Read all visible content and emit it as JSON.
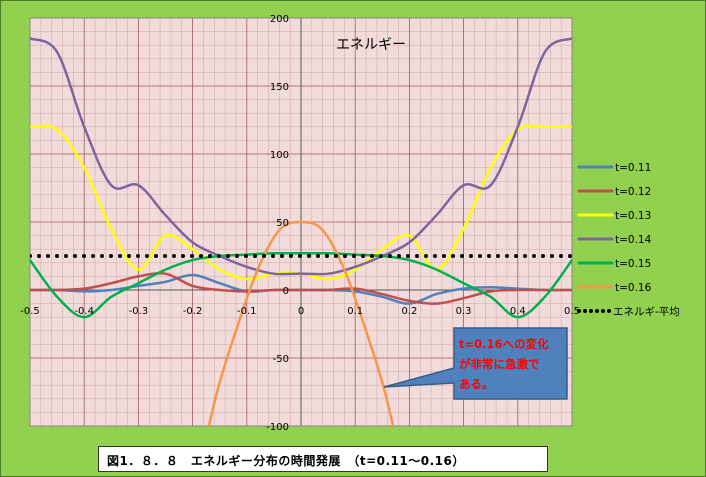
{
  "caption": "図1．８．８　エネルギー分布の時間発展　（t=0.11～0.16）",
  "colors": {
    "background": "#92d050",
    "plot_area": "#f2dcdb",
    "grid": "#c08080",
    "callout_fill": "#4f81bd",
    "callout_text": "#ff0000"
  },
  "callout": {
    "line1": "t=0.16への変化",
    "line2": "が非常に急激で",
    "line3": "ある。"
  },
  "chart_data": {
    "type": "line",
    "title": "エネルギー",
    "xlim": [
      -0.5,
      0.5
    ],
    "ylim": [
      -100,
      200
    ],
    "x_ticks": [
      -0.5,
      -0.4,
      -0.3,
      -0.2,
      -0.1,
      0,
      0.1,
      0.2,
      0.3,
      0.4,
      0.5
    ],
    "x_tick_labels": [
      "-0.5",
      "-0.4",
      "-0.3",
      "-0.2",
      "-0.1",
      "0",
      "0.1",
      "0.2",
      "0.3",
      "0.4",
      "0.5"
    ],
    "y_ticks": [
      -100,
      -50,
      0,
      50,
      100,
      150,
      200
    ],
    "y_tick_labels": [
      "-100",
      "-50",
      "0",
      "50",
      "100",
      "150",
      "200"
    ],
    "grid": true,
    "legend_position": "right",
    "x": [
      -0.5,
      -0.45,
      -0.4,
      -0.35,
      -0.3,
      -0.25,
      -0.2,
      -0.15,
      -0.1,
      -0.05,
      0,
      0.05,
      0.1,
      0.15,
      0.2,
      0.25,
      0.3,
      0.35,
      0.4,
      0.45,
      0.5
    ],
    "series": [
      {
        "name": "t=0.11",
        "color": "#4f81bd",
        "values": [
          0,
          0,
          -1,
          0,
          3,
          6,
          11,
          5,
          -1,
          0,
          0,
          0,
          -1,
          -5,
          -10,
          -3,
          1,
          2,
          1,
          0,
          0
        ]
      },
      {
        "name": "t=0.12",
        "color": "#c0504d",
        "values": [
          0,
          0,
          1,
          5,
          10,
          12,
          3,
          0,
          -1,
          0,
          0,
          0,
          1,
          -3,
          -8,
          -10,
          -6,
          -1,
          0,
          0,
          0
        ]
      },
      {
        "name": "t=0.13",
        "color": "#ffff00",
        "values": [
          120,
          118,
          90,
          45,
          15,
          40,
          30,
          15,
          8,
          12,
          12,
          8,
          15,
          30,
          40,
          15,
          45,
          90,
          118,
          120,
          120
        ]
      },
      {
        "name": "t=0.14",
        "color": "#8064a2",
        "values": [
          185,
          175,
          120,
          77,
          77,
          55,
          35,
          25,
          17,
          12,
          12,
          12,
          17,
          25,
          35,
          55,
          77,
          77,
          120,
          175,
          185
        ]
      },
      {
        "name": "t=0.15",
        "color": "#00b050",
        "values": [
          22,
          -5,
          -20,
          -5,
          5,
          15,
          22,
          25,
          26,
          27,
          27,
          27,
          26,
          25,
          22,
          15,
          5,
          -5,
          -20,
          -5,
          22
        ]
      },
      {
        "name": "t=0.16",
        "color": "#f79646",
        "x": [
          -0.17,
          -0.15,
          -0.12,
          -0.08,
          -0.04,
          0,
          0.04,
          0.08,
          0.12,
          0.15,
          0.17
        ],
        "values": [
          -100,
          -68,
          -30,
          15,
          44,
          50,
          44,
          15,
          -30,
          -68,
          -100
        ]
      },
      {
        "name": "エネルギ-平均",
        "color": "#000000",
        "style": "dotted",
        "x": [
          -0.5,
          0.5
        ],
        "values": [
          25,
          25
        ]
      }
    ]
  }
}
